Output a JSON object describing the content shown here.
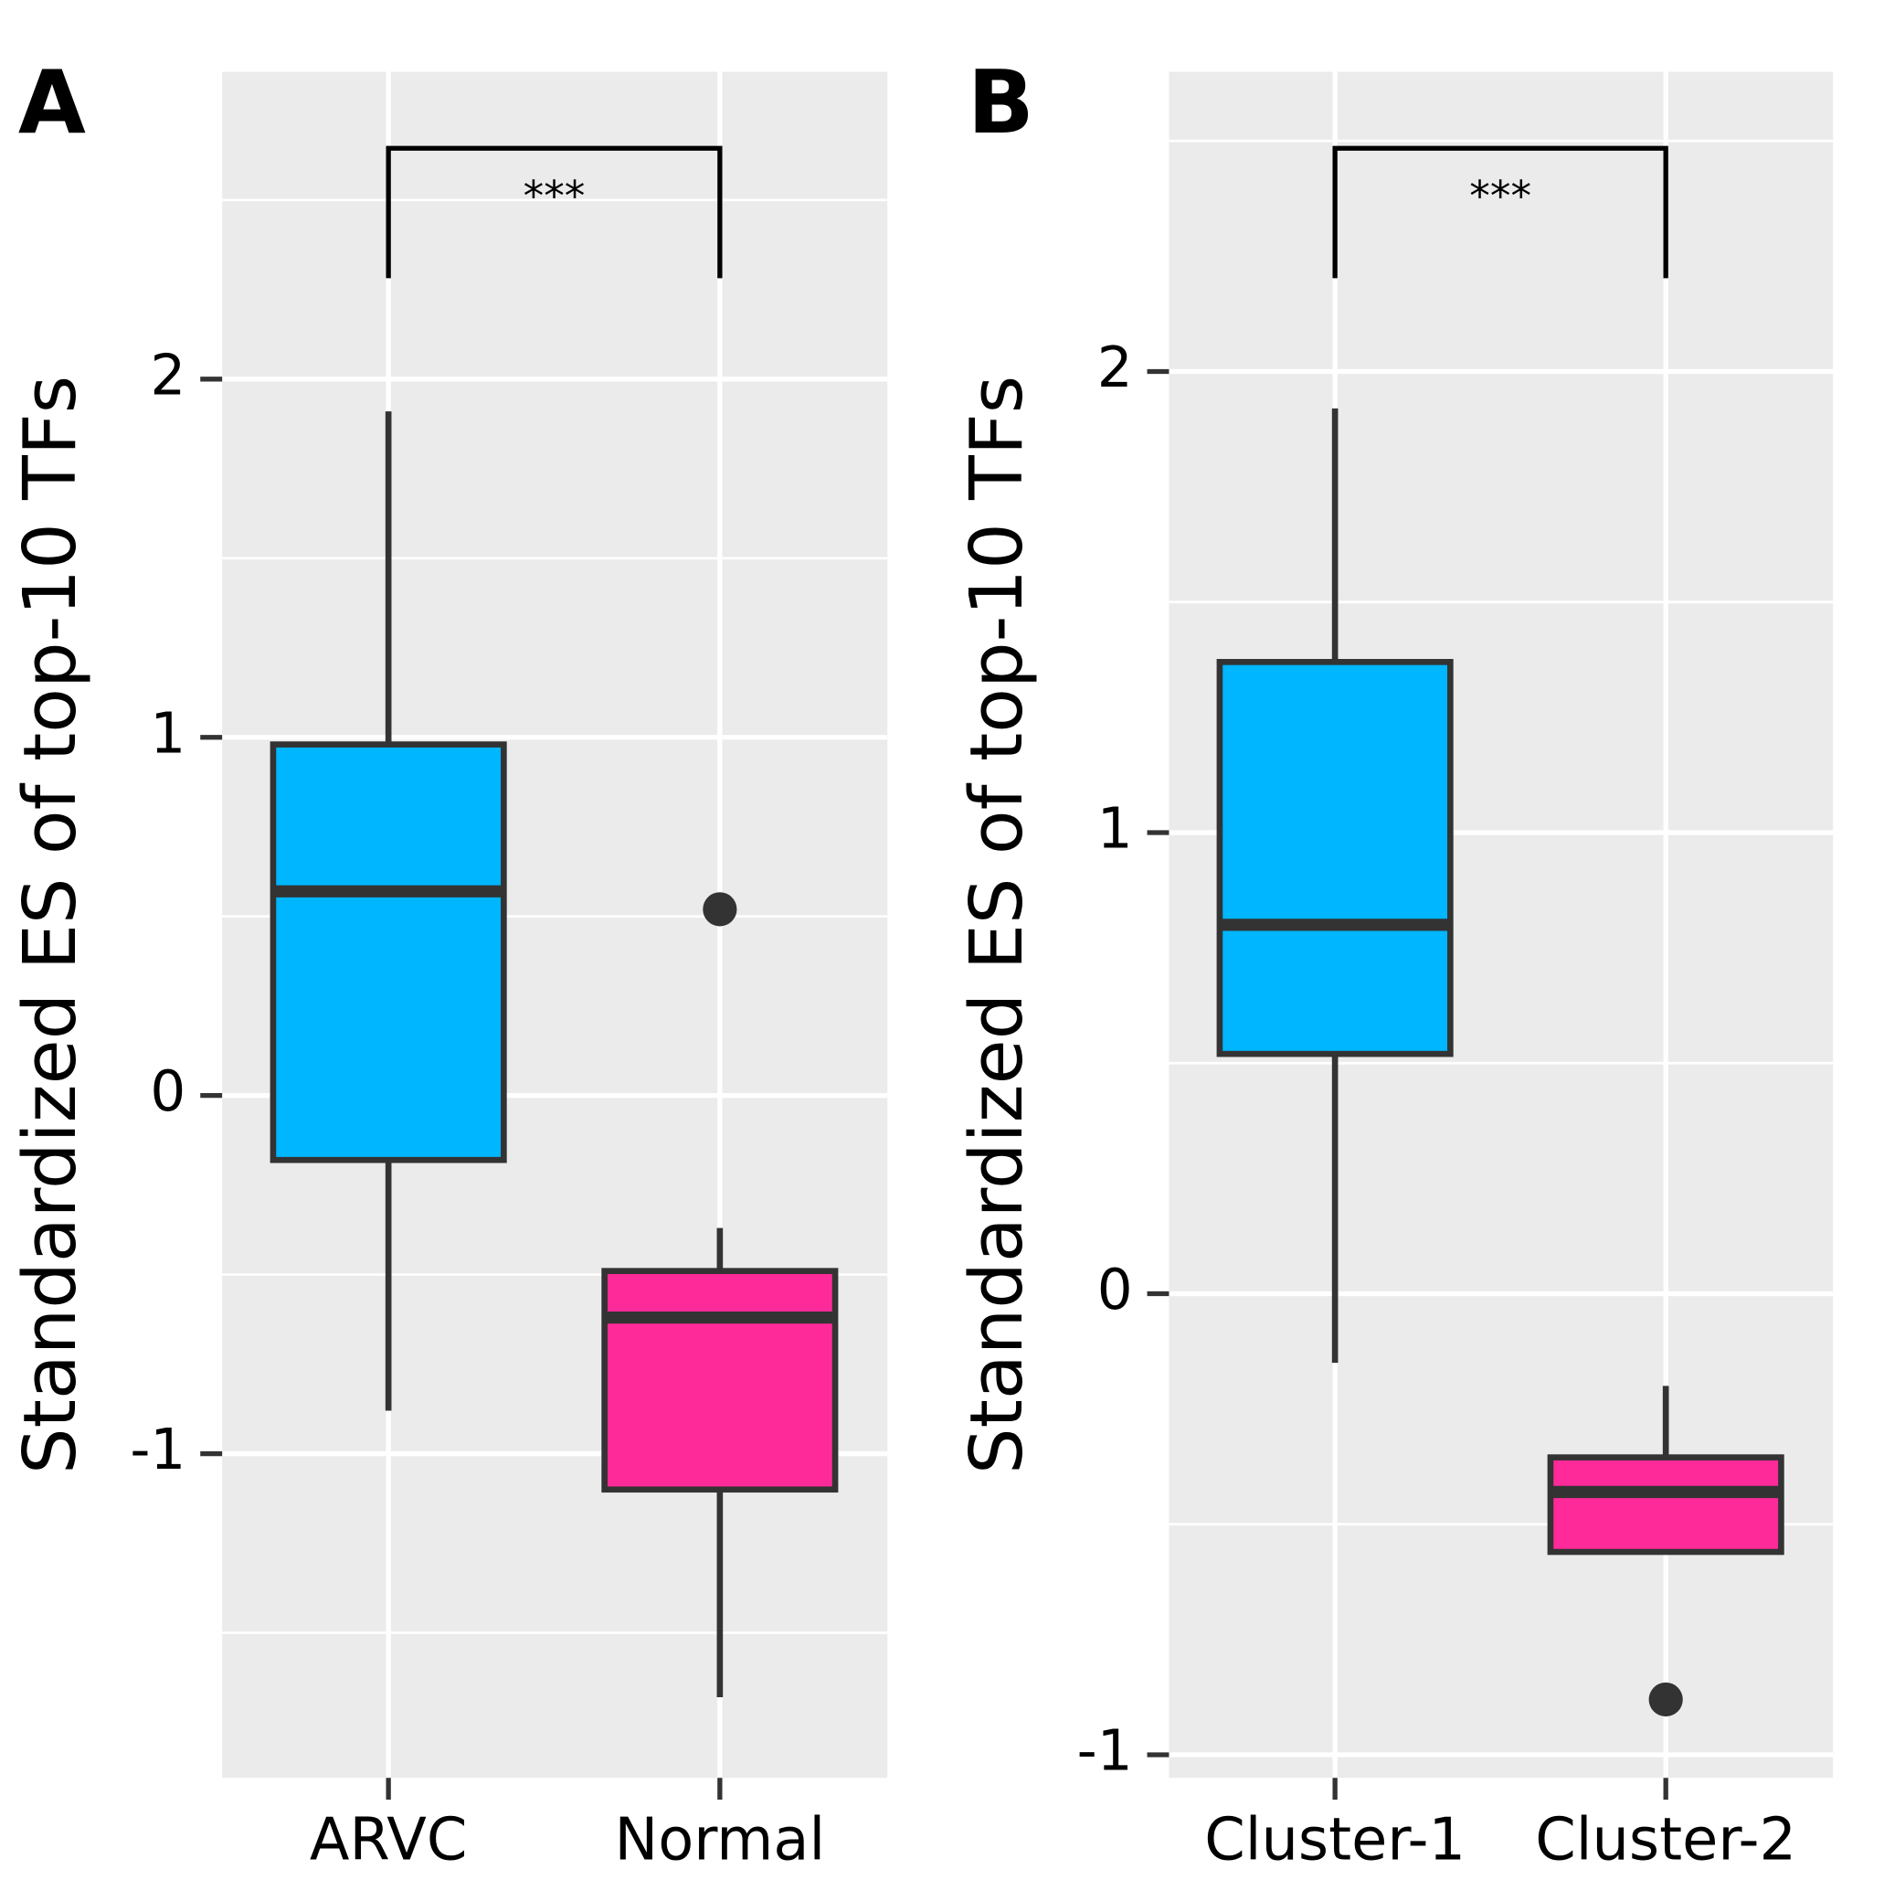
{
  "chart_data": [
    {
      "type": "box",
      "panel": "A",
      "ylabel": "Standardized ES of top-10 TFs",
      "annotation": "***",
      "categories": [
        "ARVC",
        "Normal"
      ],
      "boxes": [
        {
          "color": "#00b6ff",
          "min": -0.88,
          "q1": -0.18,
          "median": 0.57,
          "q3": 0.98,
          "max": 1.91,
          "outliers": []
        },
        {
          "color": "#ff2a9a",
          "min": -1.68,
          "q1": -1.1,
          "median": -0.62,
          "q3": -0.49,
          "max": -0.37,
          "outliers": [
            0.52
          ]
        }
      ],
      "ylim": [
        -1.905,
        2.858
      ],
      "yticks": [
        -1,
        0,
        1,
        2
      ],
      "grid": true
    },
    {
      "type": "box",
      "panel": "B",
      "ylabel": "Standardized ES of top-10 TFs",
      "annotation": "***",
      "categories": [
        "Cluster-1",
        "Cluster-2"
      ],
      "boxes": [
        {
          "color": "#00b6ff",
          "min": -0.15,
          "q1": 0.52,
          "median": 0.8,
          "q3": 1.37,
          "max": 1.92,
          "outliers": []
        },
        {
          "color": "#ff2a9a",
          "min": -0.56,
          "q1": -0.56,
          "median": -0.43,
          "q3": -0.355,
          "max": -0.2,
          "outliers": [
            -0.88
          ]
        }
      ],
      "ylim": [
        -1.05,
        2.65
      ],
      "yticks": [
        -1,
        0,
        1,
        2
      ],
      "grid": true
    }
  ]
}
